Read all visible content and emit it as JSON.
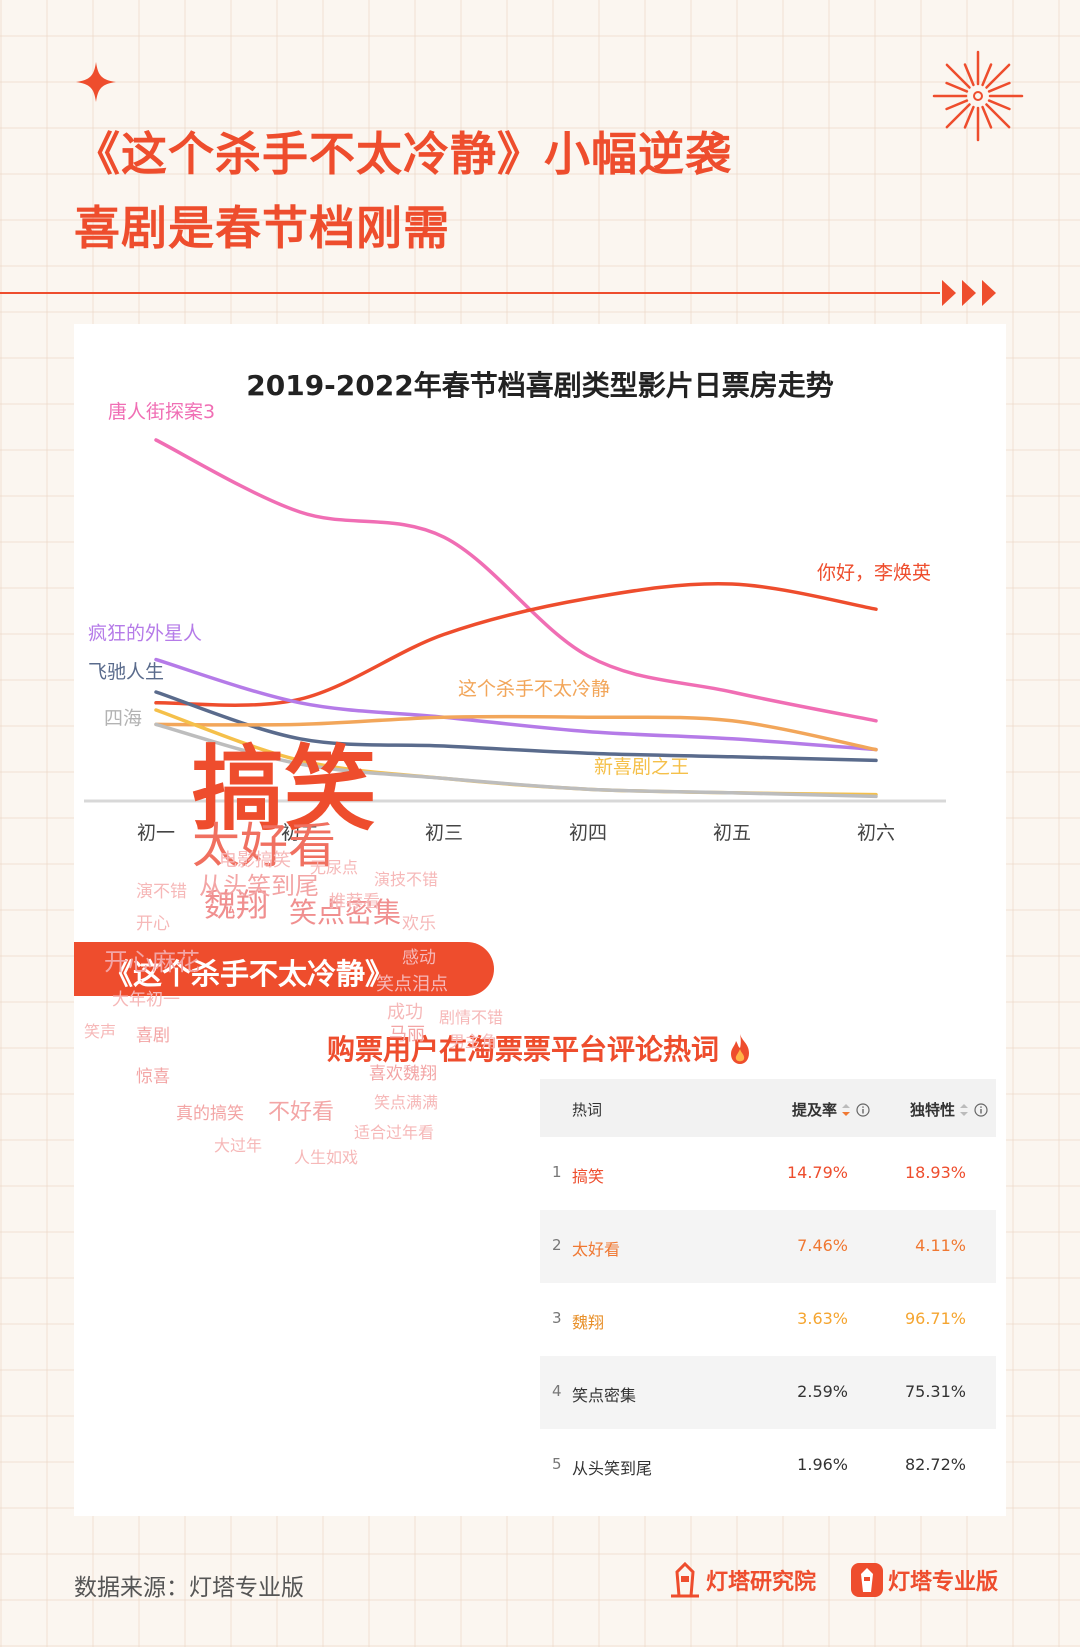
{
  "header": {
    "title_line1": "《这个杀手不太冷静》小幅逆袭",
    "title_line2": "喜剧是春节档刚需"
  },
  "chart_data": {
    "type": "line",
    "title": "2019-2022年春节档喜剧类型影片日票房走势",
    "categories": [
      "初一",
      "初二",
      "初三",
      "初四",
      "初五",
      "初六"
    ],
    "ylim": [
      0,
      100
    ],
    "grid": false,
    "legend": "inline-labels",
    "series": [
      {
        "name": "唐人街探案3",
        "color": "#f06eb4",
        "values": [
          100,
          80,
          73,
          40,
          30,
          22
        ]
      },
      {
        "name": "你好，李焕英",
        "color": "#ee4d2d",
        "values": [
          27,
          28,
          46,
          56,
          60,
          53
        ]
      },
      {
        "name": "疯狂的外星人",
        "color": "#b57be8",
        "values": [
          39,
          27,
          23,
          19,
          17,
          14
        ]
      },
      {
        "name": "飞驰人生",
        "color": "#5a6b8c",
        "values": [
          30,
          17,
          15,
          13,
          12,
          11
        ]
      },
      {
        "name": "这个杀手不太冷静",
        "color": "#f2a65a",
        "values": [
          21,
          21,
          23,
          23,
          22,
          14
        ]
      },
      {
        "name": "新喜剧之王",
        "color": "#f5c04a",
        "values": [
          25,
          11,
          6,
          3,
          2,
          1.5
        ]
      },
      {
        "name": "四海",
        "color": "#bdbdbd",
        "values": [
          21,
          10,
          6,
          3,
          2,
          1
        ]
      }
    ]
  },
  "section": {
    "film_tag": "《这个杀手不太冷静》",
    "wordcloud_title": "购票用户在淘票票平台评论热词"
  },
  "wordcloud": {
    "words": [
      {
        "text": "搞笑",
        "tone": "#ee4d2d"
      },
      {
        "text": "太好看",
        "tone": "#f07060"
      },
      {
        "text": "魏翔",
        "tone": "#f08f8f"
      },
      {
        "text": "笑点密集",
        "tone": "#f08f8f"
      },
      {
        "text": "开心麻花",
        "tone": "#f3a5a5"
      },
      {
        "text": "从头笑到尾",
        "tone": "#f3a5a5"
      },
      {
        "text": "电影搞笑",
        "tone": "#f6b8b8"
      },
      {
        "text": "无尿点",
        "tone": "#f6b8b8"
      },
      {
        "text": "演技不错",
        "tone": "#f6b8b8"
      },
      {
        "text": "演不错",
        "tone": "#f6b8b8"
      },
      {
        "text": "推荐看",
        "tone": "#f6b8b8"
      },
      {
        "text": "开心",
        "tone": "#f6b8b8"
      },
      {
        "text": "欢乐",
        "tone": "#f6b8b8"
      },
      {
        "text": "感动",
        "tone": "#f6b8b8"
      },
      {
        "text": "大年初一",
        "tone": "#f6b8b8"
      },
      {
        "text": "笑点泪点",
        "tone": "#f6b8b8"
      },
      {
        "text": "成功",
        "tone": "#f6b8b8"
      },
      {
        "text": "剧情不错",
        "tone": "#f6b8b8"
      },
      {
        "text": "笑声",
        "tone": "#f6b8b8"
      },
      {
        "text": "喜剧",
        "tone": "#f3a5a5"
      },
      {
        "text": "马丽",
        "tone": "#f3a5a5"
      },
      {
        "text": "男主角",
        "tone": "#f6b8b8"
      },
      {
        "text": "惊喜",
        "tone": "#f3a5a5"
      },
      {
        "text": "喜欢魏翔",
        "tone": "#f3a5a5"
      },
      {
        "text": "笑点满满",
        "tone": "#f6b8b8"
      },
      {
        "text": "真的搞笑",
        "tone": "#f3a5a5"
      },
      {
        "text": "不好看",
        "tone": "#f3a5a5"
      },
      {
        "text": "适合过年看",
        "tone": "#f6b8b8"
      },
      {
        "text": "大过年",
        "tone": "#f6b8b8"
      },
      {
        "text": "人生如戏",
        "tone": "#f6b8b8"
      }
    ]
  },
  "table": {
    "headers": {
      "word": "热词",
      "rate": "提及率",
      "uniq": "独特性"
    },
    "rows": [
      {
        "rank": "1",
        "word": "搞笑",
        "rate": "14.79%",
        "uniq": "18.93%"
      },
      {
        "rank": "2",
        "word": "太好看",
        "rate": "7.46%",
        "uniq": "4.11%"
      },
      {
        "rank": "3",
        "word": "魏翔",
        "rate": "3.63%",
        "uniq": "96.71%"
      },
      {
        "rank": "4",
        "word": "笑点密集",
        "rate": "2.59%",
        "uniq": "75.31%"
      },
      {
        "rank": "5",
        "word": "从头笑到尾",
        "rate": "1.96%",
        "uniq": "82.72%"
      }
    ]
  },
  "footer": {
    "source": "数据来源：灯塔专业版",
    "logo1": "灯塔研究院",
    "logo2": "灯塔专业版"
  }
}
